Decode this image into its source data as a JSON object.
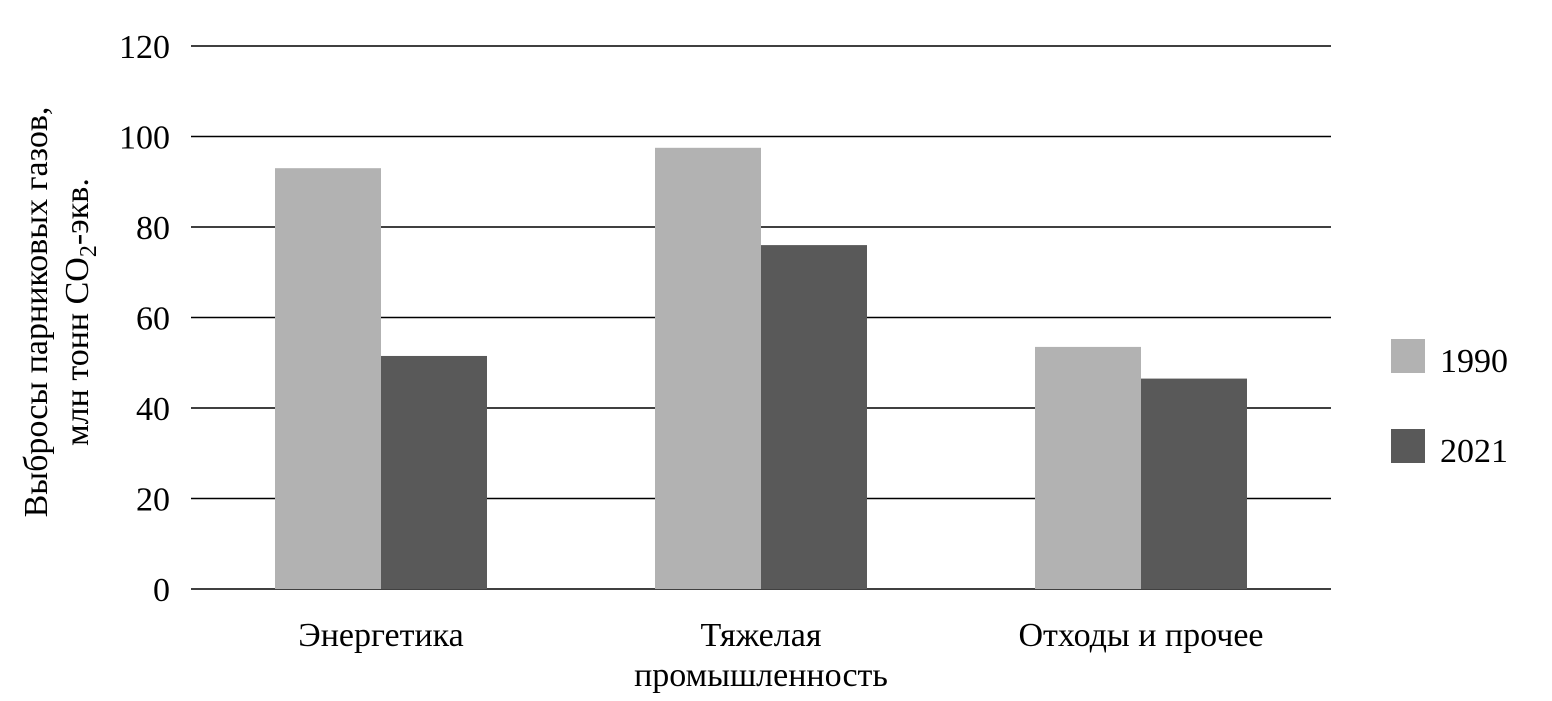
{
  "chart_data": {
    "type": "bar",
    "categories": [
      "Энергетика",
      "Тяжелая промышленность",
      "Отходы и прочее"
    ],
    "category_lines": [
      [
        "Энергетика"
      ],
      [
        "Тяжелая",
        "промышленность"
      ],
      [
        "Отходы и прочее"
      ]
    ],
    "series": [
      {
        "name": "1990",
        "color": "#b2b2b2",
        "values": [
          93,
          97.5,
          53.5
        ]
      },
      {
        "name": "2021",
        "color": "#595959",
        "values": [
          51.5,
          76,
          46.5
        ]
      }
    ],
    "ylabel": {
      "line1": "Выбросы парниковых газов,",
      "line2_pre": "млн тонн CO",
      "line2_sub": "2",
      "line2_post": "-экв."
    },
    "ylim": [
      0,
      120
    ],
    "yticks": [
      "0",
      "20",
      "40",
      "60",
      "80",
      "100",
      "120"
    ],
    "grid": true,
    "legend_position": "right"
  }
}
